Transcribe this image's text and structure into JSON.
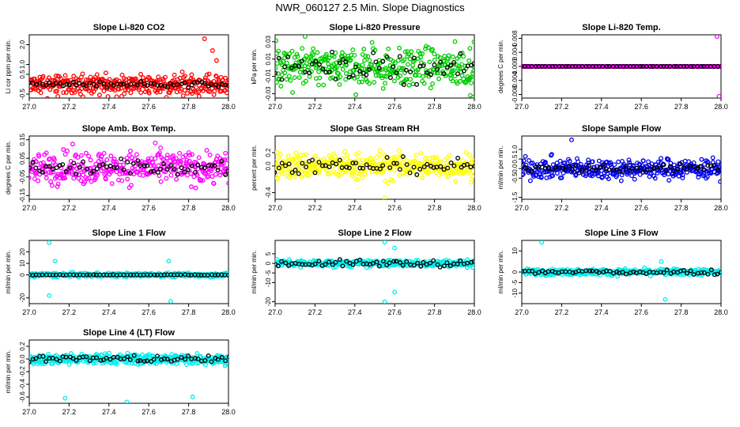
{
  "page_title": "NWR_060127  2.5 Min. Slope Diagnostics",
  "colors": {
    "black": "#000000",
    "axis": "#000000"
  },
  "chart_data": [
    {
      "type": "scatter",
      "title": "Slope Li-820 CO2",
      "ylabel": "Li cor ppm per min.",
      "xlim": [
        27.0,
        28.0
      ],
      "ylim": [
        -0.7,
        2.5
      ],
      "xticks": [
        27.0,
        27.2,
        27.4,
        27.6,
        27.8,
        28.0
      ],
      "xtick_labels": [
        "27.0",
        "27.2",
        "27.4",
        "27.6",
        "27.8",
        "28.0"
      ],
      "yticks": [
        -0.5,
        0.5,
        1.0,
        2.0
      ],
      "ytick_labels": [
        "-0.5",
        "0.5",
        "1.0",
        "2.0"
      ],
      "series": [
        {
          "name": "all",
          "color": "#ff0000",
          "values": [
            -0.1,
            0.1,
            -0.3,
            0.2,
            -0.2,
            0.05,
            0.3,
            -0.4,
            0.15,
            -0.05,
            0.25,
            -0.25,
            0.0,
            0.1,
            -0.15
          ],
          "spread": 0.55
        },
        {
          "name": "mean",
          "color": "#000000",
          "values": [
            0.0,
            0.05,
            -0.05,
            0.02,
            0.0,
            -0.03,
            0.04,
            0.0,
            -0.02,
            0.03,
            0.0,
            -0.1
          ],
          "spread": 0.2
        }
      ],
      "outliers": [
        {
          "x": 27.88,
          "y": 2.3
        },
        {
          "x": 27.92,
          "y": 1.7
        },
        {
          "x": 27.94,
          "y": 1.2
        }
      ]
    },
    {
      "type": "scatter",
      "title": "Slope Li-820 Pressure",
      "ylabel": "kPa per min.",
      "xlim": [
        27.0,
        28.0
      ],
      "ylim": [
        -0.035,
        0.038
      ],
      "xticks": [
        27.0,
        27.2,
        27.4,
        27.6,
        27.8,
        28.0
      ],
      "xtick_labels": [
        "27.0",
        "27.2",
        "27.4",
        "27.6",
        "27.8",
        "28.0"
      ],
      "yticks": [
        -0.03,
        -0.01,
        0.01,
        0.03
      ],
      "ytick_labels": [
        "-0.03",
        "-0.01",
        "0.01",
        "0.03"
      ],
      "series": [
        {
          "name": "all",
          "color": "#00cc00",
          "values": [
            0.0,
            0.01,
            -0.01,
            0.005,
            -0.005,
            0.0
          ],
          "spread": 0.035
        },
        {
          "name": "mean",
          "color": "#000000",
          "values": [
            0.0,
            0.005,
            -0.005,
            0.0
          ],
          "spread": 0.02
        }
      ],
      "outliers": [
        {
          "x": 27.15,
          "y": 0.036
        },
        {
          "x": 27.98,
          "y": -0.032
        }
      ]
    },
    {
      "type": "scatter",
      "title": "Slope Li-820 Temp.",
      "ylabel": "degrees C per min.",
      "xlim": [
        27.0,
        28.0
      ],
      "ylim": [
        -0.009,
        0.009
      ],
      "xticks": [
        27.0,
        27.2,
        27.4,
        27.6,
        27.8,
        28.0
      ],
      "xtick_labels": [
        "27.0",
        "27.2",
        "27.4",
        "27.6",
        "27.8",
        "28.0"
      ],
      "yticks": [
        -0.008,
        -0.004,
        0.0,
        0.004,
        0.008
      ],
      "ytick_labels": [
        "-0.008",
        "-0.004",
        "0.000",
        "0.004",
        "0.008"
      ],
      "series": [
        {
          "name": "all",
          "color": "#ff00ff",
          "values": [
            0.0
          ],
          "spread": 0.0
        },
        {
          "name": "mean",
          "color": "#000000",
          "values": [
            0.0
          ],
          "spread": 0.0
        }
      ],
      "outliers": [
        {
          "x": 27.98,
          "y": 0.0085
        },
        {
          "x": 27.99,
          "y": -0.0085
        }
      ]
    },
    {
      "type": "scatter",
      "title": "Slope Amb. Box Temp.",
      "ylabel": "degrees C per min.",
      "xlim": [
        27.0,
        28.0
      ],
      "ylim": [
        -0.17,
        0.17
      ],
      "xticks": [
        27.0,
        27.2,
        27.4,
        27.6,
        27.8,
        28.0
      ],
      "xtick_labels": [
        "27.0",
        "27.2",
        "27.4",
        "27.6",
        "27.8",
        "28.0"
      ],
      "yticks": [
        -0.15,
        -0.05,
        0.05,
        0.15
      ],
      "ytick_labels": [
        "-0.15",
        "-0.05",
        "0.05",
        "0.15"
      ],
      "series": [
        {
          "name": "all",
          "color": "#ff00ff",
          "values": [
            0.0
          ],
          "spread": 0.15
        },
        {
          "name": "mean",
          "color": "#000000",
          "values": [
            0.0
          ],
          "spread": 0.07
        }
      ],
      "outliers": []
    },
    {
      "type": "scatter",
      "title": "Slope Gas Stream RH",
      "ylabel": "percent per min.",
      "xlim": [
        27.0,
        28.0
      ],
      "ylim": [
        -0.5,
        0.45
      ],
      "xticks": [
        27.0,
        27.2,
        27.4,
        27.6,
        27.8,
        28.0
      ],
      "xtick_labels": [
        "27.0",
        "27.2",
        "27.4",
        "27.6",
        "27.8",
        "28.0"
      ],
      "yticks": [
        -0.4,
        0.0,
        0.2
      ],
      "ytick_labels": [
        "-0.4",
        "0.0",
        "0.2"
      ],
      "series": [
        {
          "name": "all",
          "color": "#ffff00",
          "values": [
            0.0
          ],
          "spread": 0.35
        },
        {
          "name": "mean",
          "color": "#000000",
          "values": [
            0.0
          ],
          "spread": 0.2
        }
      ],
      "outliers": [
        {
          "x": 27.55,
          "y": -0.48
        }
      ]
    },
    {
      "type": "scatter",
      "title": "Slope Sample Flow",
      "ylabel": "ml/min per min.",
      "xlim": [
        27.0,
        28.0
      ],
      "ylim": [
        -1.6,
        1.7
      ],
      "xticks": [
        27.0,
        27.2,
        27.4,
        27.6,
        27.8,
        28.0
      ],
      "xtick_labels": [
        "27.0",
        "27.2",
        "27.4",
        "27.6",
        "27.8",
        "28.0"
      ],
      "yticks": [
        -1.5,
        -0.5,
        0.0,
        0.5,
        1.0
      ],
      "ytick_labels": [
        "-1.5",
        "-0.5",
        "0.0",
        "0.5",
        "1.0"
      ],
      "series": [
        {
          "name": "all",
          "color": "#0000ee",
          "values": [
            0.0
          ],
          "spread": 0.9
        },
        {
          "name": "mean",
          "color": "#000000",
          "values": [
            0.0
          ],
          "spread": 0.4
        }
      ],
      "outliers": [
        {
          "x": 27.25,
          "y": 1.5
        }
      ]
    },
    {
      "type": "scatter",
      "title": "Slope Line 1 Flow",
      "ylabel": "ml/min per min.",
      "xlim": [
        27.0,
        28.0
      ],
      "ylim": [
        -25,
        30
      ],
      "xticks": [
        27.0,
        27.2,
        27.4,
        27.6,
        27.8,
        28.0
      ],
      "xtick_labels": [
        "27.0",
        "27.2",
        "27.4",
        "27.6",
        "27.8",
        "28.0"
      ],
      "yticks": [
        -20,
        0,
        10,
        20
      ],
      "ytick_labels": [
        "-20",
        "0",
        "10",
        "20"
      ],
      "series": [
        {
          "name": "all",
          "color": "#00eeee",
          "values": [
            0.0
          ],
          "spread": 3
        },
        {
          "name": "mean",
          "color": "#000000",
          "values": [
            0.0
          ],
          "spread": 0.6
        }
      ],
      "outliers": [
        {
          "x": 27.1,
          "y": 28
        },
        {
          "x": 27.13,
          "y": 12
        },
        {
          "x": 27.1,
          "y": -18
        },
        {
          "x": 27.7,
          "y": 12
        },
        {
          "x": 27.71,
          "y": -23
        }
      ]
    },
    {
      "type": "scatter",
      "title": "Slope Line 2 Flow",
      "ylabel": "ml/min per min.",
      "xlim": [
        27.0,
        28.0
      ],
      "ylim": [
        -21,
        12
      ],
      "xticks": [
        27.0,
        27.2,
        27.4,
        27.6,
        27.8,
        28.0
      ],
      "xtick_labels": [
        "27.0",
        "27.2",
        "27.4",
        "27.6",
        "27.8",
        "28.0"
      ],
      "yticks": [
        -20,
        -10,
        -5,
        0,
        5
      ],
      "ytick_labels": [
        "-20",
        "-10",
        "-5",
        "0",
        "5"
      ],
      "series": [
        {
          "name": "all",
          "color": "#00eeee",
          "values": [
            0.0
          ],
          "spread": 3
        },
        {
          "name": "mean",
          "color": "#000000",
          "values": [
            0.0
          ],
          "spread": 3
        }
      ],
      "outliers": [
        {
          "x": 27.55,
          "y": -20
        },
        {
          "x": 27.6,
          "y": -15
        },
        {
          "x": 27.55,
          "y": 11
        },
        {
          "x": 27.6,
          "y": 8
        }
      ]
    },
    {
      "type": "scatter",
      "title": "Slope Line 3 Flow",
      "ylabel": "ml/min per min.",
      "xlim": [
        27.0,
        28.0
      ],
      "ylim": [
        -15,
        15
      ],
      "xticks": [
        27.0,
        27.2,
        27.4,
        27.6,
        27.8,
        28.0
      ],
      "xtick_labels": [
        "27.0",
        "27.2",
        "27.4",
        "27.6",
        "27.8",
        "28.0"
      ],
      "yticks": [
        -10,
        -5,
        0,
        10
      ],
      "ytick_labels": [
        "-10",
        "-5",
        "0",
        "10"
      ],
      "series": [
        {
          "name": "all",
          "color": "#00eeee",
          "values": [
            0.0
          ],
          "spread": 2.5
        },
        {
          "name": "mean",
          "color": "#000000",
          "values": [
            0.0
          ],
          "spread": 2
        }
      ],
      "outliers": [
        {
          "x": 27.1,
          "y": 14
        },
        {
          "x": 27.72,
          "y": -13
        },
        {
          "x": 27.7,
          "y": 5
        }
      ]
    },
    {
      "type": "scatter",
      "title": "Slope Line 4 (LT) Flow",
      "ylabel": "ml/min per min.",
      "xlim": [
        27.0,
        28.0
      ],
      "ylim": [
        -0.7,
        0.3
      ],
      "xticks": [
        27.0,
        27.2,
        27.4,
        27.6,
        27.8,
        28.0
      ],
      "xtick_labels": [
        "27.0",
        "27.2",
        "27.4",
        "27.6",
        "27.8",
        "28.0"
      ],
      "yticks": [
        -0.6,
        -0.4,
        -0.2,
        0.0,
        0.2
      ],
      "ytick_labels": [
        "-0.6",
        "-0.4",
        "-0.2",
        "0.0",
        "0.2"
      ],
      "series": [
        {
          "name": "all",
          "color": "#00eeee",
          "values": [
            0.0
          ],
          "spread": 0.15
        },
        {
          "name": "mean",
          "color": "#000000",
          "values": [
            0.0
          ],
          "spread": 0.1
        }
      ],
      "outliers": [
        {
          "x": 27.18,
          "y": -0.62
        },
        {
          "x": 27.49,
          "y": -0.68
        },
        {
          "x": 27.82,
          "y": -0.6
        }
      ]
    }
  ]
}
